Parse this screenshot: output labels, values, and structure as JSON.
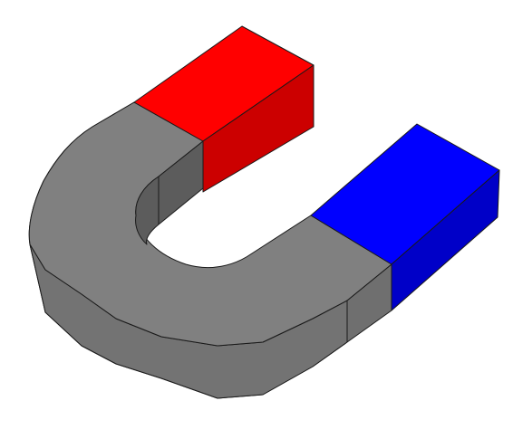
{
  "colors": {
    "background": "#ffffff",
    "body_top": "#808080",
    "body_side": "#6f6f6f",
    "body_inner": "#5c5c5c",
    "red_top": "#ff0000",
    "red_side": "#cc0000",
    "blue_top": "#0000ff",
    "blue_side": "#0000c8",
    "outline": "#1a1a1a"
  },
  "parts": [
    "body",
    "red-pole",
    "blue-pole"
  ]
}
